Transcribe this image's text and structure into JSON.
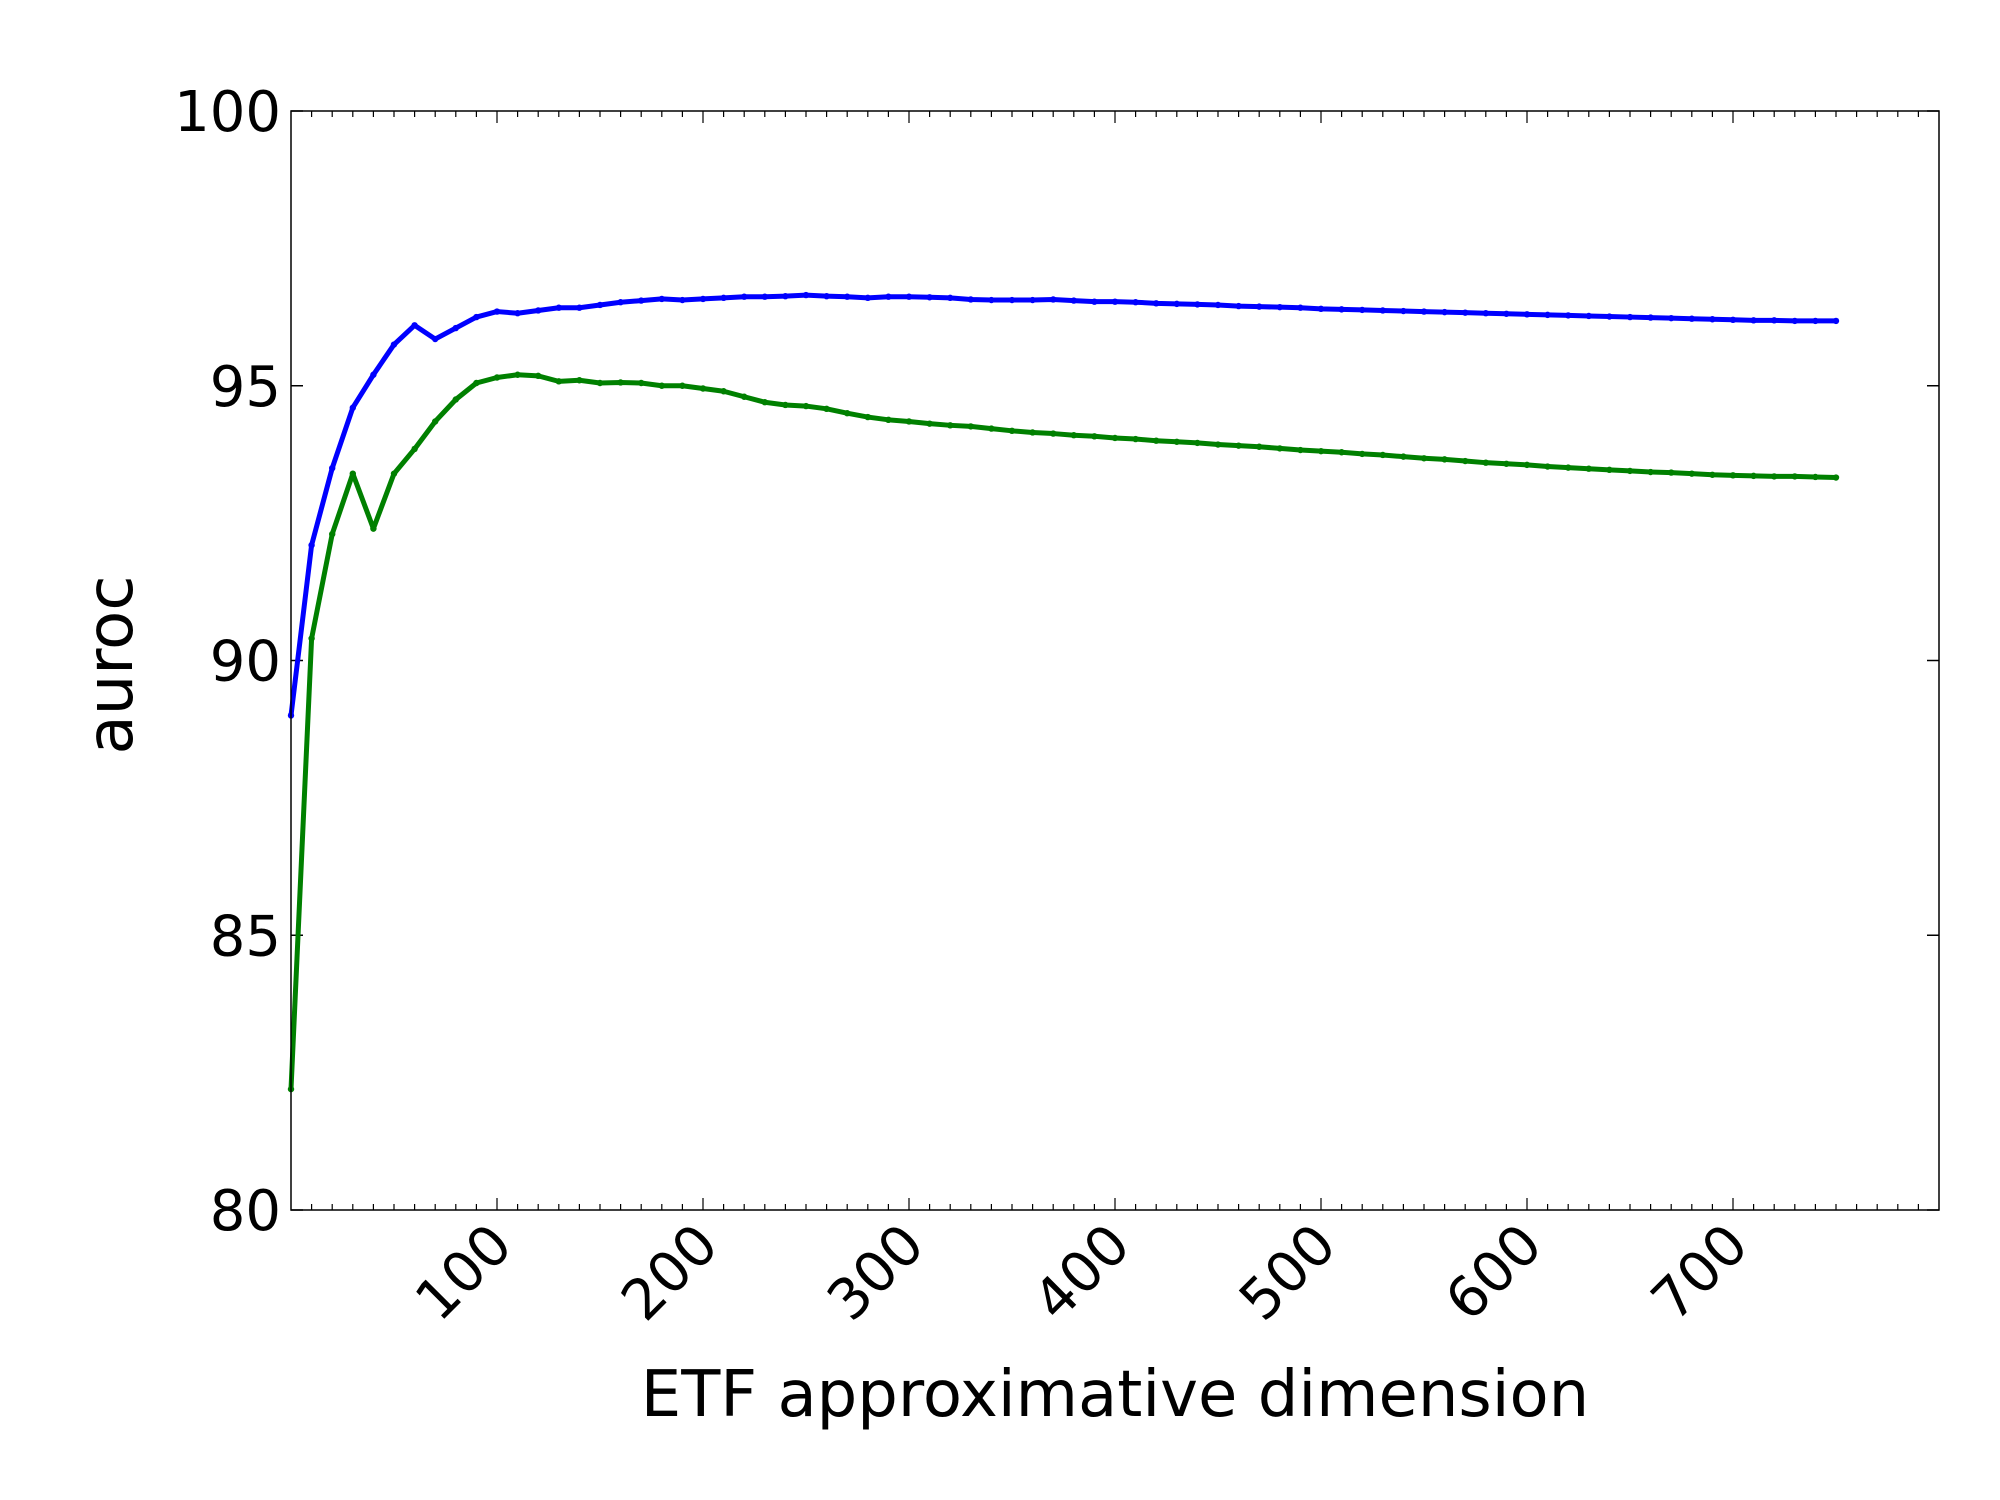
{
  "chart_data": {
    "type": "line",
    "title": "",
    "xlabel": "ETF approximative dimension",
    "ylabel": "auroc",
    "xlim": [
      0,
      800
    ],
    "ylim": [
      80,
      100
    ],
    "xticks": [
      100,
      200,
      300,
      400,
      500,
      600,
      700
    ],
    "yticks": [
      80,
      85,
      90,
      95,
      100
    ],
    "xtick_labels": [
      "100",
      "200",
      "300",
      "400",
      "500",
      "600",
      "700"
    ],
    "ytick_labels": [
      "80",
      "85",
      "90",
      "95",
      "100"
    ],
    "grid": false,
    "legend": "none",
    "x": [
      0,
      10,
      20,
      30,
      40,
      50,
      60,
      70,
      80,
      90,
      100,
      110,
      120,
      130,
      140,
      150,
      160,
      170,
      180,
      190,
      200,
      210,
      220,
      230,
      240,
      250,
      260,
      270,
      280,
      290,
      300,
      310,
      320,
      330,
      340,
      350,
      360,
      370,
      380,
      390,
      400,
      410,
      420,
      430,
      440,
      450,
      460,
      470,
      480,
      490,
      500,
      510,
      520,
      530,
      540,
      550,
      560,
      570,
      580,
      590,
      600,
      610,
      620,
      630,
      640,
      650,
      660,
      670,
      680,
      690,
      700,
      710,
      720,
      730,
      740,
      750
    ],
    "series": [
      {
        "color": "#0000ff",
        "values": [
          89.0,
          92.1,
          93.5,
          94.6,
          95.2,
          95.75,
          96.1,
          95.85,
          96.05,
          96.25,
          96.35,
          96.32,
          96.37,
          96.42,
          96.42,
          96.47,
          96.52,
          96.55,
          96.58,
          96.56,
          96.58,
          96.6,
          96.62,
          96.62,
          96.63,
          96.65,
          96.63,
          96.62,
          96.6,
          96.62,
          96.62,
          96.61,
          96.6,
          96.57,
          96.56,
          96.56,
          96.56,
          96.57,
          96.55,
          96.53,
          96.53,
          96.52,
          96.5,
          96.49,
          96.48,
          96.47,
          96.45,
          96.44,
          96.43,
          96.42,
          96.4,
          96.39,
          96.38,
          96.37,
          96.36,
          96.35,
          96.34,
          96.33,
          96.32,
          96.31,
          96.3,
          96.29,
          96.28,
          96.27,
          96.26,
          96.25,
          96.24,
          96.23,
          96.22,
          96.21,
          96.2,
          96.19,
          96.19,
          96.18,
          96.18,
          96.18
        ]
      },
      {
        "color": "#008000",
        "values": [
          82.2,
          90.4,
          92.3,
          93.4,
          92.4,
          93.4,
          93.85,
          94.35,
          94.75,
          95.05,
          95.15,
          95.2,
          95.18,
          95.08,
          95.1,
          95.05,
          95.06,
          95.05,
          95.0,
          95.0,
          94.95,
          94.9,
          94.8,
          94.7,
          94.65,
          94.63,
          94.58,
          94.5,
          94.43,
          94.38,
          94.35,
          94.31,
          94.28,
          94.26,
          94.22,
          94.18,
          94.15,
          94.13,
          94.1,
          94.08,
          94.05,
          94.03,
          94.0,
          93.98,
          93.96,
          93.93,
          93.91,
          93.89,
          93.86,
          93.83,
          93.81,
          93.79,
          93.76,
          93.74,
          93.71,
          93.68,
          93.66,
          93.63,
          93.6,
          93.58,
          93.56,
          93.53,
          93.51,
          93.49,
          93.47,
          93.45,
          93.43,
          93.42,
          93.4,
          93.38,
          93.37,
          93.36,
          93.35,
          93.35,
          93.34,
          93.33
        ]
      }
    ]
  }
}
